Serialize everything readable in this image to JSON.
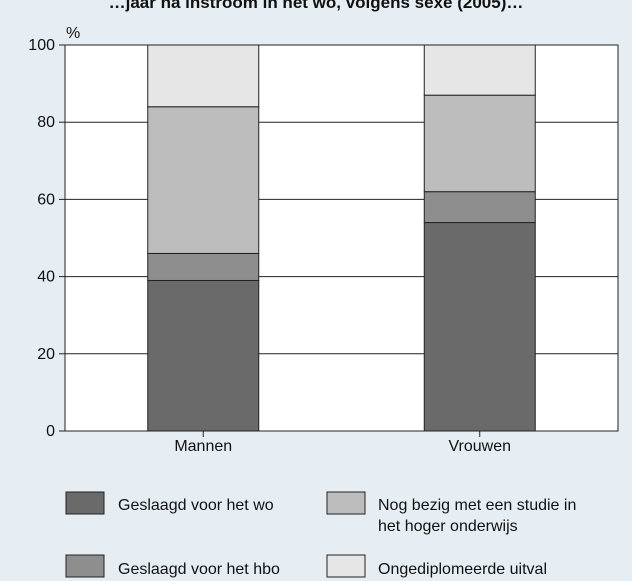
{
  "chart_data": {
    "type": "bar",
    "stacked": true,
    "title_fragment": "…jaar na instroom in het wo, volgens sexe (2005)…",
    "ylabel": "%",
    "ylim": [
      0,
      100
    ],
    "yticks": [
      0,
      20,
      40,
      60,
      80,
      100
    ],
    "grid": true,
    "legend_position": "bottom",
    "categories": [
      "Mannen",
      "Vrouwen"
    ],
    "series": [
      {
        "name": "Geslaagd voor het wo",
        "values": [
          39,
          54
        ],
        "color": "#6a6a6a"
      },
      {
        "name": "Geslaagd voor het hbo",
        "values": [
          7,
          8
        ],
        "color": "#8e8e8e"
      },
      {
        "name": "Nog bezig met een studie in het hoger onderwijs",
        "values": [
          38,
          25
        ],
        "color": "#bdbdbd"
      },
      {
        "name": "Ongediplomeerde uitval",
        "values": [
          16,
          13
        ],
        "color": "#e6e6e6"
      }
    ]
  },
  "legend": {
    "items": [
      {
        "lines": [
          "Geslaagd voor het wo"
        ],
        "color": "#6a6a6a"
      },
      {
        "lines": [
          "Nog bezig met een studie in",
          "het hoger onderwijs"
        ],
        "color": "#bdbdbd"
      },
      {
        "lines": [
          "Geslaagd voor het hbo"
        ],
        "color": "#8e8e8e"
      },
      {
        "lines": [
          "Ongediplomeerde uitval"
        ],
        "color": "#e6e6e6"
      }
    ]
  }
}
